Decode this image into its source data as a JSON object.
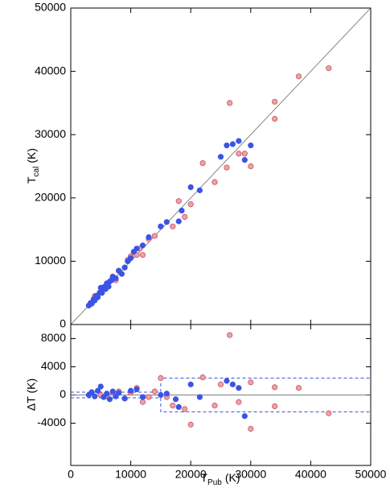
{
  "chart_data": [
    {
      "type": "scatter",
      "ylabel": {
        "main": "T",
        "sub": "cal",
        "unit": "(K)"
      },
      "xlim": [
        0,
        50000
      ],
      "ylim": [
        0,
        50000
      ],
      "xticks": [
        0,
        10000,
        20000,
        30000,
        40000,
        50000
      ],
      "yticks": [
        0,
        10000,
        20000,
        30000,
        40000,
        50000
      ],
      "identity_line": true,
      "series": [
        {
          "color": "#e8a3a8",
          "edge": "#d05060",
          "x": [
            4000,
            5000,
            6000,
            7000,
            7500,
            8000,
            9000,
            9500,
            10000,
            11000,
            11500,
            12000,
            13000,
            14000,
            15000,
            17000,
            18000,
            19000,
            20000,
            22000,
            24000,
            26000,
            26500,
            28000,
            29000,
            30000,
            34000,
            34000,
            38000,
            43000
          ],
          "values": [
            4500,
            5200,
            6200,
            7600,
            7000,
            8500,
            9000,
            10200,
            10800,
            11000,
            12000,
            11000,
            13500,
            14000,
            15500,
            15500,
            19500,
            17000,
            19000,
            25500,
            22500,
            24800,
            35000,
            27000,
            27000,
            25000,
            35200,
            32500,
            39200,
            40500
          ]
        },
        {
          "color": "#3a55e6",
          "edge": "#3a55e6",
          "x": [
            3000,
            3300,
            3500,
            3800,
            4000,
            4200,
            4500,
            4800,
            5000,
            5200,
            5500,
            5800,
            6000,
            6300,
            6500,
            6800,
            7000,
            7500,
            8000,
            8500,
            9000,
            9500,
            10000,
            10500,
            11000,
            12000,
            13000,
            15000,
            16000,
            18000,
            18500,
            20000,
            21500,
            25000,
            26000,
            27000,
            28000,
            29000,
            30000
          ],
          "values": [
            3000,
            3400,
            3300,
            4000,
            3800,
            4500,
            4300,
            5000,
            5800,
            5000,
            5900,
            5600,
            6500,
            6000,
            6800,
            7000,
            7500,
            7300,
            8500,
            8000,
            9000,
            10000,
            10500,
            11500,
            12000,
            12500,
            13800,
            15500,
            16200,
            16300,
            18000,
            21700,
            21200,
            26500,
            28300,
            28500,
            29000,
            26000,
            28300
          ]
        }
      ]
    },
    {
      "type": "scatter",
      "ylabel": "ΔT (K)",
      "xlabel": {
        "main": "T",
        "sub": "Pub",
        "unit": "(K)"
      },
      "xlim": [
        0,
        50000
      ],
      "ylim": [
        -10000,
        10000
      ],
      "xticks": [
        0,
        10000,
        20000,
        30000,
        40000,
        50000
      ],
      "yticks": [
        8000,
        4000,
        0,
        -4000
      ],
      "zero_line": true,
      "dashed_lines": [
        {
          "color": "#3a55e6",
          "x": [
            0,
            15000,
            15000,
            50000
          ],
          "y": [
            400,
            400,
            2400,
            2400
          ]
        },
        {
          "color": "#3a55e6",
          "x": [
            0,
            15000,
            15000,
            50000
          ],
          "y": [
            -400,
            -400,
            -2400,
            -2400
          ]
        }
      ],
      "series": [
        {
          "color": "#e8a3a8",
          "edge": "#d05060",
          "x": [
            5000,
            6000,
            7000,
            8000,
            9000,
            10000,
            11000,
            12000,
            13000,
            14000,
            15000,
            16000,
            17000,
            19000,
            20000,
            22000,
            24000,
            25000,
            26500,
            28000,
            30000,
            30000,
            34000,
            34000,
            38000,
            43000
          ],
          "values": [
            0,
            -200,
            300,
            500,
            -500,
            300,
            1000,
            -1000,
            -300,
            500,
            2400,
            -300,
            -1500,
            -2000,
            -4200,
            2500,
            -1500,
            1500,
            8500,
            -1000,
            1800,
            -4800,
            1100,
            -1600,
            1000,
            -2600
          ]
        },
        {
          "color": "#3a55e6",
          "edge": "#3a55e6",
          "x": [
            3000,
            3500,
            4000,
            4500,
            5000,
            5500,
            6000,
            6500,
            7000,
            7500,
            8000,
            9000,
            10000,
            11000,
            12000,
            15000,
            16000,
            17500,
            18000,
            20000,
            21500,
            26000,
            27000,
            28000,
            29000
          ],
          "values": [
            0,
            400,
            -200,
            600,
            1200,
            -300,
            200,
            -600,
            500,
            -200,
            300,
            -500,
            600,
            800,
            -300,
            0,
            200,
            -600,
            -1700,
            1500,
            -300,
            2000,
            1500,
            1000,
            -3000
          ]
        }
      ]
    }
  ]
}
